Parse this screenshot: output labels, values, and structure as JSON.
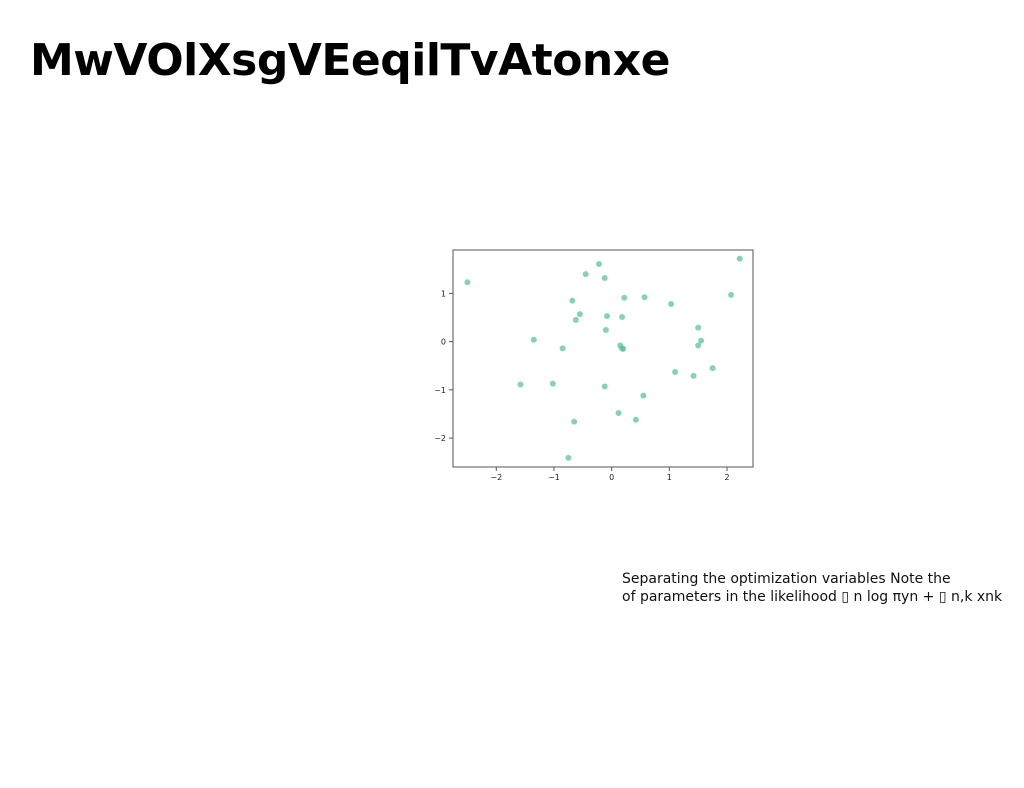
{
  "slide": {
    "title": "MwVOlXsgVEeqilTvAtonxe",
    "caption_lines": [
      "Separating the optimization variables Note the",
      "of parameters in the likelihood ▯ n log πyn + ▯ n,k xnk"
    ]
  },
  "colors": {
    "point": "#5cbf9a",
    "axis": "#555555",
    "background": "#ffffff"
  },
  "chart_data": {
    "type": "scatter",
    "title": "",
    "xlabel": "",
    "ylabel": "",
    "xlim": [
      -2.75,
      2.45
    ],
    "ylim": [
      -2.6,
      1.9
    ],
    "x_ticks": [
      -2,
      -1,
      0,
      1,
      2
    ],
    "y_ticks": [
      1,
      0,
      -1,
      -2
    ],
    "x_tick_labels": [
      "−2",
      "−1",
      "0",
      "1",
      "2"
    ],
    "y_tick_labels": [
      "1",
      "0",
      "−1",
      "−2"
    ],
    "grid": false,
    "points": [
      {
        "x": -2.5,
        "y": 1.23
      },
      {
        "x": -1.58,
        "y": -0.89
      },
      {
        "x": -1.35,
        "y": 0.04
      },
      {
        "x": -1.02,
        "y": -0.87
      },
      {
        "x": -0.85,
        "y": -0.14
      },
      {
        "x": -0.75,
        "y": -2.41
      },
      {
        "x": -0.68,
        "y": 0.85
      },
      {
        "x": -0.65,
        "y": -1.66
      },
      {
        "x": -0.62,
        "y": 0.45
      },
      {
        "x": -0.55,
        "y": 0.57
      },
      {
        "x": -0.45,
        "y": 1.4
      },
      {
        "x": -0.22,
        "y": 1.61
      },
      {
        "x": -0.12,
        "y": 1.32
      },
      {
        "x": -0.12,
        "y": -0.93
      },
      {
        "x": -0.1,
        "y": 0.24
      },
      {
        "x": -0.08,
        "y": 0.53
      },
      {
        "x": 0.12,
        "y": -1.48
      },
      {
        "x": 0.15,
        "y": -0.08
      },
      {
        "x": 0.18,
        "y": -0.14
      },
      {
        "x": 0.2,
        "y": -0.15
      },
      {
        "x": 0.18,
        "y": 0.51
      },
      {
        "x": 0.22,
        "y": 0.91
      },
      {
        "x": 0.42,
        "y": -1.62
      },
      {
        "x": 0.55,
        "y": -1.12
      },
      {
        "x": 0.57,
        "y": 0.92
      },
      {
        "x": 1.03,
        "y": 0.78
      },
      {
        "x": 1.1,
        "y": -0.63
      },
      {
        "x": 1.42,
        "y": -0.71
      },
      {
        "x": 1.5,
        "y": 0.29
      },
      {
        "x": 1.5,
        "y": -0.08
      },
      {
        "x": 1.55,
        "y": 0.02
      },
      {
        "x": 1.75,
        "y": -0.55
      },
      {
        "x": 2.07,
        "y": 0.97
      },
      {
        "x": 2.22,
        "y": 1.72
      }
    ]
  }
}
